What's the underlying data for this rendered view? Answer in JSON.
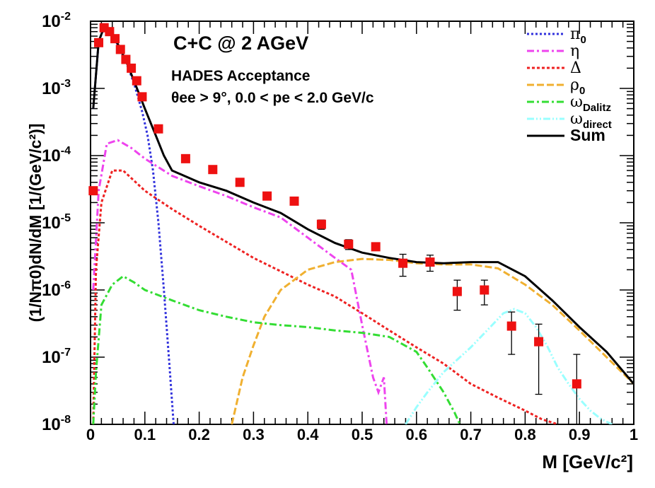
{
  "chart_data": {
    "type": "line",
    "title": "C+C @ 2 AGeV",
    "subtitle_line1": "HADES Acceptance",
    "subtitle_line2": "θee > 9°, 0.0 < pe < 2.0 GeV/c",
    "xlabel": "M [GeV/c²]",
    "ylabel": "(1/Nπ0)dN/dM [1/(GeV/c²)]",
    "xlim": [
      0,
      1
    ],
    "ylim_log10": [
      -8,
      -2
    ],
    "y_scale": "log",
    "x_ticks": [
      "0",
      "0.1",
      "0.2",
      "0.3",
      "0.4",
      "0.5",
      "0.6",
      "0.7",
      "0.8",
      "0.9",
      "1"
    ],
    "y_ticks": [
      {
        "base": "10",
        "exp": "-8",
        "value": 1e-08
      },
      {
        "base": "10",
        "exp": "-7",
        "value": 1e-07
      },
      {
        "base": "10",
        "exp": "-6",
        "value": 1e-06
      },
      {
        "base": "10",
        "exp": "-5",
        "value": 1e-05
      },
      {
        "base": "10",
        "exp": "-4",
        "value": 0.0001
      },
      {
        "base": "10",
        "exp": "-3",
        "value": 0.001
      },
      {
        "base": "10",
        "exp": "-2",
        "value": 0.01
      }
    ],
    "legend_position": "top-right",
    "series": [
      {
        "name": "π0",
        "color": "#3333dd",
        "dash": "3,3",
        "x": [
          0.005,
          0.015,
          0.025,
          0.035,
          0.05,
          0.065,
          0.08,
          0.095,
          0.105,
          0.115,
          0.125,
          0.135,
          0.145,
          0.153
        ],
        "y": [
          0.0005,
          0.005,
          0.008,
          0.007,
          0.0045,
          0.0025,
          0.0012,
          0.00045,
          0.0002,
          6e-05,
          1e-05,
          1e-06,
          8e-08,
          1e-08
        ]
      },
      {
        "name": "η",
        "color": "#ee44ee",
        "dash": "10,4,3,4",
        "x": [
          0.005,
          0.015,
          0.03,
          0.05,
          0.075,
          0.1,
          0.15,
          0.2,
          0.25,
          0.3,
          0.35,
          0.4,
          0.45,
          0.48,
          0.5,
          0.52,
          0.53,
          0.54,
          0.545
        ],
        "y": [
          1e-06,
          3e-05,
          0.00015,
          0.00017,
          0.00013,
          9e-05,
          5e-05,
          3.5e-05,
          2.5e-05,
          1.7e-05,
          1.2e-05,
          6e-06,
          3e-06,
          2e-06,
          3e-07,
          5e-08,
          3e-08,
          5e-08,
          1e-08
        ]
      },
      {
        "name": "Δ",
        "color": "#ee2222",
        "dash": "4,3",
        "x": [
          0.005,
          0.01,
          0.02,
          0.04,
          0.06,
          0.1,
          0.15,
          0.2,
          0.3,
          0.4,
          0.45,
          0.5,
          0.55,
          0.6,
          0.65,
          0.7,
          0.75,
          0.8,
          0.83,
          0.86
        ],
        "y": [
          1e-08,
          2e-06,
          2e-05,
          6e-05,
          6e-05,
          3e-05,
          1.6e-05,
          9e-06,
          3e-06,
          1.2e-06,
          8e-07,
          4.5e-07,
          2.5e-07,
          1.4e-07,
          8e-08,
          4e-08,
          2.5e-08,
          1.6e-08,
          1.2e-08,
          1e-08
        ]
      },
      {
        "name": "ρ0",
        "color": "#f0b030",
        "dash": "10,4",
        "x": [
          0.26,
          0.28,
          0.3,
          0.32,
          0.35,
          0.4,
          0.45,
          0.5,
          0.55,
          0.6,
          0.65,
          0.7,
          0.75,
          0.8,
          0.85,
          0.9,
          0.95,
          1.0
        ],
        "y": [
          1e-08,
          5e-08,
          1.5e-07,
          4e-07,
          1e-06,
          2e-06,
          2.6e-06,
          2.9e-06,
          2.8e-06,
          2.5e-06,
          2.4e-06,
          2.4e-06,
          2.1e-06,
          1.2e-06,
          6e-07,
          2.5e-07,
          1e-07,
          4e-08
        ]
      },
      {
        "name": "ωDalitz",
        "color": "#33dd33",
        "dash": "10,4,3,4",
        "x": [
          0.005,
          0.01,
          0.02,
          0.04,
          0.06,
          0.08,
          0.1,
          0.15,
          0.2,
          0.25,
          0.3,
          0.35,
          0.4,
          0.45,
          0.5,
          0.55,
          0.6,
          0.62,
          0.65,
          0.67,
          0.68
        ],
        "y": [
          1e-08,
          6e-08,
          6e-07,
          1.2e-06,
          1.6e-06,
          1.3e-06,
          1e-06,
          7e-07,
          5e-07,
          4e-07,
          3.3e-07,
          3e-07,
          2.8e-07,
          2.5e-07,
          2.3e-07,
          2e-07,
          1.2e-07,
          7e-08,
          3e-08,
          1.5e-08,
          1e-08
        ]
      },
      {
        "name": "ωdirect",
        "color": "#99ffff",
        "dash": "10,3,2,3,2,3",
        "x": [
          0.58,
          0.6,
          0.62,
          0.65,
          0.7,
          0.73,
          0.76,
          0.78,
          0.8,
          0.82,
          0.84,
          0.86,
          0.88,
          0.9,
          0.92,
          0.94,
          0.96
        ],
        "y": [
          1e-08,
          1.8e-08,
          3e-08,
          6e-08,
          1.4e-07,
          2.5e-07,
          4.5e-07,
          5.2e-07,
          4.5e-07,
          2.8e-07,
          1.5e-07,
          7e-08,
          4e-08,
          2.4e-08,
          1.6e-08,
          1.2e-08,
          1e-08
        ]
      },
      {
        "name": "Sum",
        "color": "#000000",
        "dash": "",
        "x": [
          0.005,
          0.015,
          0.025,
          0.035,
          0.05,
          0.065,
          0.08,
          0.1,
          0.12,
          0.135,
          0.15,
          0.2,
          0.25,
          0.3,
          0.35,
          0.4,
          0.45,
          0.5,
          0.55,
          0.6,
          0.65,
          0.7,
          0.75,
          0.8,
          0.85,
          0.9,
          0.95,
          1.0
        ],
        "y": [
          0.0005,
          0.005,
          0.0082,
          0.0072,
          0.0046,
          0.0026,
          0.0013,
          0.0005,
          0.0002,
          0.0001,
          6e-05,
          4e-05,
          3e-05,
          2e-05,
          1.4e-05,
          8e-06,
          5e-06,
          3.6e-06,
          3e-06,
          2.6e-06,
          2.5e-06,
          2.6e-06,
          2.6e-06,
          1.6e-06,
          7e-07,
          2.8e-07,
          1.2e-07,
          4e-08
        ]
      }
    ],
    "data_points": [
      {
        "x": 0.005,
        "y": 3e-05,
        "lo": 3e-05,
        "hi": 3e-05
      },
      {
        "x": 0.015,
        "y": 0.0048,
        "lo": 0.0048,
        "hi": 0.0048
      },
      {
        "x": 0.025,
        "y": 0.008,
        "lo": 0.008,
        "hi": 0.008
      },
      {
        "x": 0.035,
        "y": 0.007,
        "lo": 0.007,
        "hi": 0.007
      },
      {
        "x": 0.045,
        "y": 0.0055,
        "lo": 0.0055,
        "hi": 0.0055
      },
      {
        "x": 0.055,
        "y": 0.0038,
        "lo": 0.0038,
        "hi": 0.0038
      },
      {
        "x": 0.065,
        "y": 0.0027,
        "lo": 0.0027,
        "hi": 0.0027
      },
      {
        "x": 0.075,
        "y": 0.002,
        "lo": 0.002,
        "hi": 0.002
      },
      {
        "x": 0.085,
        "y": 0.0013,
        "lo": 0.0013,
        "hi": 0.0013
      },
      {
        "x": 0.095,
        "y": 0.00075,
        "lo": 0.00075,
        "hi": 0.00075
      },
      {
        "x": 0.125,
        "y": 0.00025,
        "lo": 0.00025,
        "hi": 0.00025
      },
      {
        "x": 0.175,
        "y": 9e-05,
        "lo": 8e-05,
        "hi": 0.0001
      },
      {
        "x": 0.225,
        "y": 6.2e-05,
        "lo": 6.2e-05,
        "hi": 6.2e-05
      },
      {
        "x": 0.275,
        "y": 4e-05,
        "lo": 4e-05,
        "hi": 4e-05
      },
      {
        "x": 0.325,
        "y": 2.5e-05,
        "lo": 2.5e-05,
        "hi": 2.5e-05
      },
      {
        "x": 0.375,
        "y": 2.1e-05,
        "lo": 2.1e-05,
        "hi": 2.1e-05
      },
      {
        "x": 0.425,
        "y": 9.5e-06,
        "lo": 8e-06,
        "hi": 1.1e-05
      },
      {
        "x": 0.475,
        "y": 4.8e-06,
        "lo": 4e-06,
        "hi": 5.6e-06
      },
      {
        "x": 0.525,
        "y": 4.4e-06,
        "lo": 4.4e-06,
        "hi": 4.4e-06
      },
      {
        "x": 0.575,
        "y": 2.5e-06,
        "lo": 1.6e-06,
        "hi": 3.4e-06
      },
      {
        "x": 0.625,
        "y": 2.6e-06,
        "lo": 1.9e-06,
        "hi": 3.3e-06
      },
      {
        "x": 0.675,
        "y": 9.5e-07,
        "lo": 5e-07,
        "hi": 1.4e-06
      },
      {
        "x": 0.725,
        "y": 1e-06,
        "lo": 6e-07,
        "hi": 1.4e-06
      },
      {
        "x": 0.775,
        "y": 2.9e-07,
        "lo": 1.1e-07,
        "hi": 4.7e-07
      },
      {
        "x": 0.825,
        "y": 1.7e-07,
        "lo": 2.8e-08,
        "hi": 3.1e-07
      },
      {
        "x": 0.895,
        "y": 4e-08,
        "lo": 1e-08,
        "hi": 1.1e-07
      }
    ],
    "marker_color": "#ee1111"
  }
}
